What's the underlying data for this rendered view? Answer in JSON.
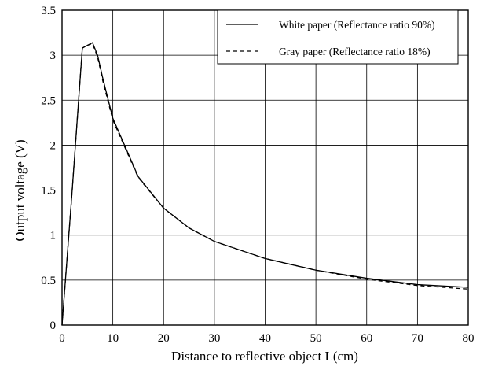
{
  "chart_data": {
    "type": "line",
    "xlabel": "Distance to reflective object L(cm)",
    "ylabel": "Output voltage (V)",
    "xlim": [
      0,
      80
    ],
    "ylim": [
      0,
      3.5
    ],
    "x_ticks": [
      0,
      10,
      20,
      30,
      40,
      50,
      60,
      70,
      80
    ],
    "y_ticks": [
      0,
      0.5,
      1,
      1.5,
      2,
      2.5,
      3,
      3.5
    ],
    "x_tick_labels": [
      "0",
      "10",
      "20",
      "30",
      "40",
      "50",
      "60",
      "70",
      "80"
    ],
    "y_tick_labels": [
      "0",
      "0.5",
      "1",
      "1.5",
      "2",
      "2.5",
      "3",
      "3.5"
    ],
    "grid": true,
    "legend_position": "top-right",
    "series": [
      {
        "name": "White paper (Reflectance ratio 90%)",
        "style": "solid",
        "color": "#000000",
        "x": [
          0,
          2,
          4,
          5,
          6,
          7,
          8,
          10,
          15,
          20,
          25,
          30,
          40,
          50,
          60,
          70,
          80
        ],
        "y": [
          0,
          1.5,
          3.08,
          3.11,
          3.14,
          3.0,
          2.75,
          2.3,
          1.65,
          1.3,
          1.08,
          0.93,
          0.74,
          0.61,
          0.52,
          0.45,
          0.42
        ]
      },
      {
        "name": "Gray paper (Reflectance ratio 18%)",
        "style": "dashed",
        "color": "#000000",
        "x": [
          0,
          2,
          4,
          5,
          6,
          7,
          8,
          10,
          15,
          20,
          25,
          30,
          40,
          50,
          60,
          70,
          80
        ],
        "y": [
          0,
          1.5,
          3.08,
          3.11,
          3.13,
          2.98,
          2.72,
          2.28,
          1.64,
          1.3,
          1.08,
          0.93,
          0.74,
          0.61,
          0.51,
          0.44,
          0.4
        ]
      }
    ]
  }
}
